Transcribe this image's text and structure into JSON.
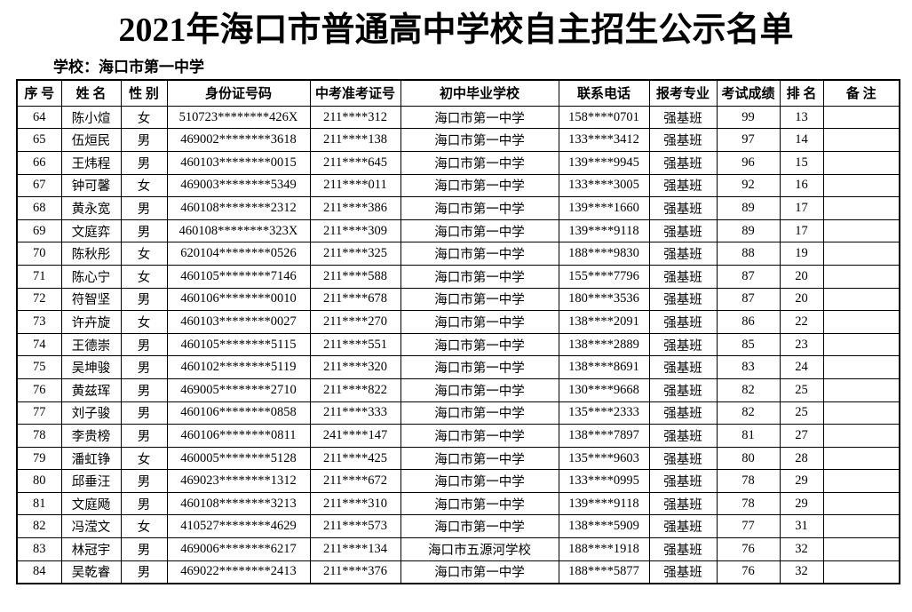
{
  "title": "2021年海口市普通高中学校自主招生公示名单",
  "school_label": "学校：海口市第一中学",
  "table": {
    "headers": [
      "序 号",
      "姓 名",
      "性 别",
      "身份证号码",
      "中考准考证号",
      "初中毕业学校",
      "联系电话",
      "报考专业",
      "考试成绩",
      "排 名",
      "备 注"
    ],
    "rows": [
      [
        "64",
        "陈小煊",
        "女",
        "510723********426X",
        "211****312",
        "海口市第一中学",
        "158****0701",
        "强基班",
        "99",
        "13",
        ""
      ],
      [
        "65",
        "伍烜民",
        "男",
        "469002********3618",
        "211****138",
        "海口市第一中学",
        "133****3412",
        "强基班",
        "97",
        "14",
        ""
      ],
      [
        "66",
        "王炜程",
        "男",
        "460103********0015",
        "211****645",
        "海口市第一中学",
        "139****9945",
        "强基班",
        "96",
        "15",
        ""
      ],
      [
        "67",
        "钟可馨",
        "女",
        "469003********5349",
        "211****011",
        "海口市第一中学",
        "133****3005",
        "强基班",
        "92",
        "16",
        ""
      ],
      [
        "68",
        "黄永宽",
        "男",
        "460108********2312",
        "211****386",
        "海口市第一中学",
        "139****1660",
        "强基班",
        "89",
        "17",
        ""
      ],
      [
        "69",
        "文庭弈",
        "男",
        "460108********323X",
        "211****309",
        "海口市第一中学",
        "139****9118",
        "强基班",
        "89",
        "17",
        ""
      ],
      [
        "70",
        "陈秋彤",
        "女",
        "620104********0526",
        "211****325",
        "海口市第一中学",
        "188****9830",
        "强基班",
        "88",
        "19",
        ""
      ],
      [
        "71",
        "陈心宁",
        "女",
        "460105********7146",
        "211****588",
        "海口市第一中学",
        "155****7796",
        "强基班",
        "87",
        "20",
        ""
      ],
      [
        "72",
        "符智坚",
        "男",
        "460106********0010",
        "211****678",
        "海口市第一中学",
        "180****3536",
        "强基班",
        "87",
        "20",
        ""
      ],
      [
        "73",
        "许卉旋",
        "女",
        "460103********0027",
        "211****270",
        "海口市第一中学",
        "138****2091",
        "强基班",
        "86",
        "22",
        ""
      ],
      [
        "74",
        "王德崇",
        "男",
        "460105********5115",
        "211****551",
        "海口市第一中学",
        "138****2889",
        "强基班",
        "85",
        "23",
        ""
      ],
      [
        "75",
        "吴坤骏",
        "男",
        "460102********5119",
        "211****320",
        "海口市第一中学",
        "138****8691",
        "强基班",
        "83",
        "24",
        ""
      ],
      [
        "76",
        "黄兹珲",
        "男",
        "469005********2710",
        "211****822",
        "海口市第一中学",
        "130****9668",
        "强基班",
        "82",
        "25",
        ""
      ],
      [
        "77",
        "刘子骏",
        "男",
        "460106********0858",
        "211****333",
        "海口市第一中学",
        "135****2333",
        "强基班",
        "82",
        "25",
        ""
      ],
      [
        "78",
        "李贵榜",
        "男",
        "460106********0811",
        "241****147",
        "海口市第一中学",
        "138****7897",
        "强基班",
        "81",
        "27",
        ""
      ],
      [
        "79",
        "潘虹铮",
        "女",
        "460005********5128",
        "211****425",
        "海口市第一中学",
        "135****9603",
        "强基班",
        "80",
        "28",
        ""
      ],
      [
        "80",
        "邱垂汪",
        "男",
        "469023********1312",
        "211****672",
        "海口市第一中学",
        "133****0995",
        "强基班",
        "78",
        "29",
        ""
      ],
      [
        "81",
        "文庭飏",
        "男",
        "460108********3213",
        "211****310",
        "海口市第一中学",
        "139****9118",
        "强基班",
        "78",
        "29",
        ""
      ],
      [
        "82",
        "冯滢文",
        "女",
        "410527********4629",
        "211****573",
        "海口市第一中学",
        "138****5909",
        "强基班",
        "77",
        "31",
        ""
      ],
      [
        "83",
        "林冠宇",
        "男",
        "469006********6217",
        "211****134",
        "海口市五源河学校",
        "188****1918",
        "强基班",
        "76",
        "32",
        ""
      ],
      [
        "84",
        "吴乾睿",
        "男",
        "469022********2413",
        "211****376",
        "海口市第一中学",
        "188****5877",
        "强基班",
        "76",
        "32",
        ""
      ]
    ]
  }
}
